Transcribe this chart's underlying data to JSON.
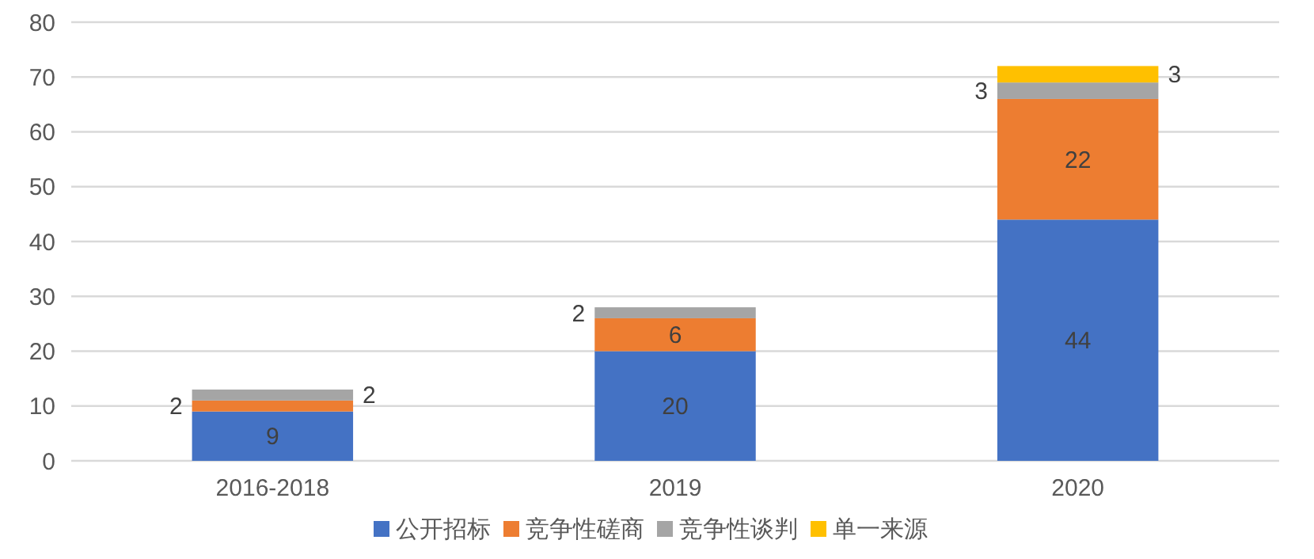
{
  "chart_data": {
    "type": "bar",
    "stacked": true,
    "categories": [
      "2016-2018",
      "2019",
      "2020"
    ],
    "series": [
      {
        "name": "公开招标",
        "color": "#4472c4",
        "values": [
          9,
          20,
          44
        ]
      },
      {
        "name": "竞争性磋商",
        "color": "#ed7d31",
        "values": [
          2,
          6,
          22
        ]
      },
      {
        "name": "竞争性谈判",
        "color": "#a5a5a5",
        "values": [
          2,
          2,
          3
        ]
      },
      {
        "name": "单一来源",
        "color": "#ffc000",
        "values": [
          null,
          null,
          3
        ]
      }
    ],
    "ylim": [
      0,
      80
    ],
    "yticks": [
      0,
      10,
      20,
      30,
      40,
      50,
      60,
      70,
      80
    ],
    "grid": "y",
    "legend": "bottom",
    "data_labels": true
  }
}
